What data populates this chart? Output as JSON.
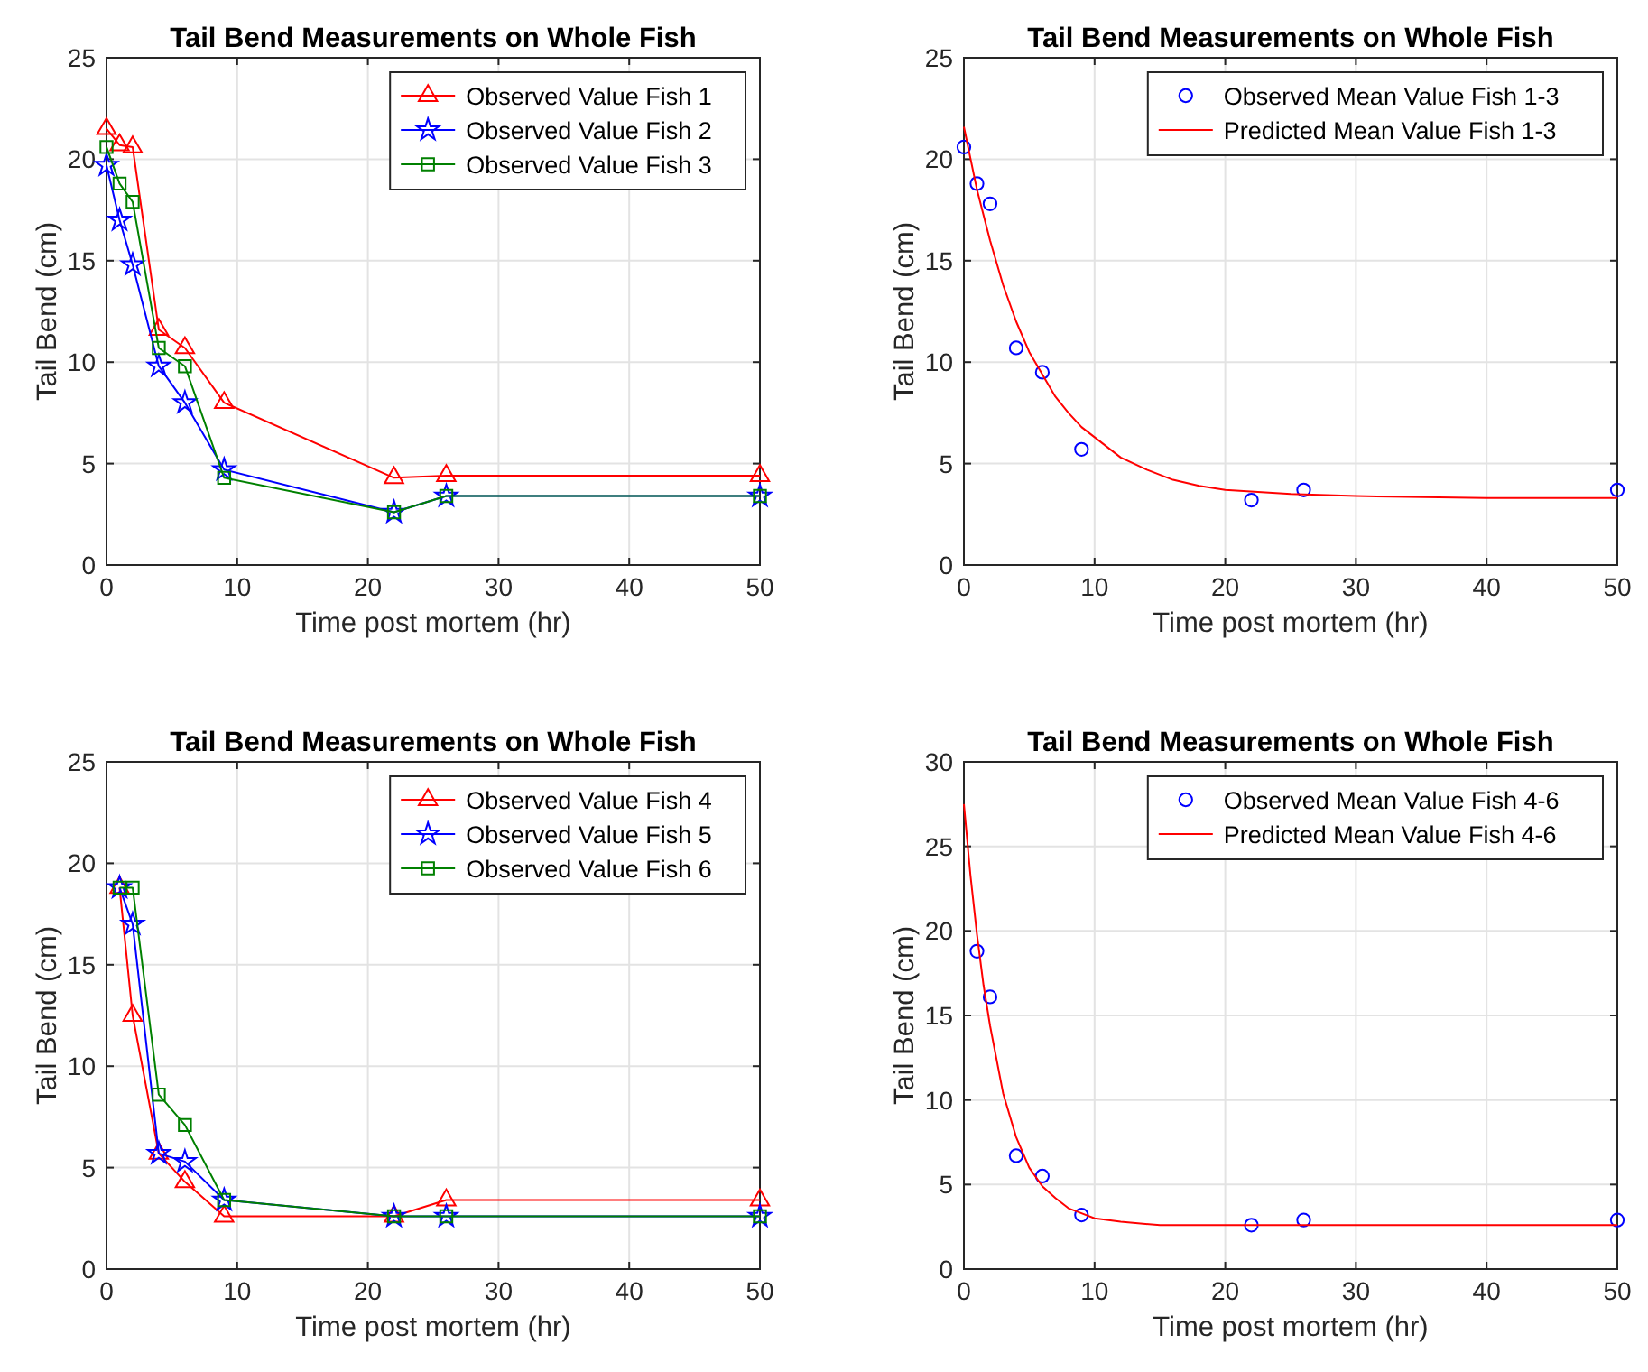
{
  "chart_data": [
    {
      "type": "line",
      "title": "Tail Bend Measurements on Whole Fish",
      "xlabel": "Time post mortem (hr)",
      "ylabel": "Tail Bend (cm)",
      "x": [
        0,
        1,
        2,
        4,
        6,
        9,
        22,
        26,
        50
      ],
      "xlim": [
        0,
        50
      ],
      "xticks": [
        0,
        10,
        20,
        30,
        40,
        50
      ],
      "ylim": [
        0,
        25
      ],
      "yticks": [
        0,
        5,
        10,
        15,
        20,
        25
      ],
      "grid": true,
      "legend": "top right",
      "series": [
        {
          "name": "Observed Value Fish 1",
          "color": "#ff0000",
          "marker": "triangle",
          "values": [
            21.5,
            20.7,
            20.6,
            11.6,
            10.7,
            8.0,
            4.3,
            4.4,
            4.4
          ]
        },
        {
          "name": "Observed Value Fish 2",
          "color": "#0000ff",
          "marker": "star",
          "values": [
            19.7,
            17.0,
            14.8,
            9.8,
            8.0,
            4.7,
            2.6,
            3.4,
            3.4
          ]
        },
        {
          "name": "Observed Value Fish 3",
          "color": "#008000",
          "marker": "square",
          "values": [
            20.6,
            18.8,
            17.9,
            10.7,
            9.8,
            4.3,
            2.6,
            3.4,
            3.4
          ]
        }
      ]
    },
    {
      "type": "scatter",
      "title": "Tail Bend Measurements on Whole Fish",
      "xlabel": "Time post mortem (hr)",
      "ylabel": "Tail Bend (cm)",
      "xlim": [
        0,
        50
      ],
      "xticks": [
        0,
        10,
        20,
        30,
        40,
        50
      ],
      "ylim": [
        0,
        25
      ],
      "yticks": [
        0,
        5,
        10,
        15,
        20,
        25
      ],
      "grid": true,
      "legend": "top right",
      "series": [
        {
          "name": "Observed Mean Value Fish 1-3",
          "color": "#0000ff",
          "marker": "circle",
          "x": [
            0,
            1,
            2,
            4,
            6,
            9,
            22,
            26,
            50
          ],
          "values": [
            20.6,
            18.8,
            17.8,
            10.7,
            9.5,
            5.7,
            3.2,
            3.7,
            3.7
          ]
        },
        {
          "name": "Predicted Mean Value Fish 1-3",
          "type": "line",
          "color": "#ff0000",
          "marker": "none",
          "x": [
            0,
            1,
            2,
            3,
            4,
            5,
            6,
            7,
            8,
            9,
            10,
            12,
            14,
            16,
            18,
            20,
            25,
            30,
            40,
            50
          ],
          "values": [
            21.6,
            18.5,
            16.0,
            13.8,
            12.0,
            10.5,
            9.4,
            8.3,
            7.5,
            6.8,
            6.3,
            5.3,
            4.7,
            4.2,
            3.9,
            3.7,
            3.5,
            3.4,
            3.3,
            3.3
          ]
        }
      ]
    },
    {
      "type": "line",
      "title": "Tail Bend Measurements on Whole Fish",
      "xlabel": "Time post mortem (hr)",
      "ylabel": "Tail Bend (cm)",
      "x": [
        1,
        2,
        4,
        6,
        9,
        22,
        26,
        50
      ],
      "xlim": [
        0,
        50
      ],
      "xticks": [
        0,
        10,
        20,
        30,
        40,
        50
      ],
      "ylim": [
        0,
        25
      ],
      "yticks": [
        0,
        5,
        10,
        15,
        20,
        25
      ],
      "grid": true,
      "legend": "top right",
      "series": [
        {
          "name": "Observed Value Fish 4",
          "color": "#ff0000",
          "marker": "triangle",
          "values": [
            18.8,
            12.5,
            5.7,
            4.3,
            2.6,
            2.6,
            3.4,
            3.4
          ]
        },
        {
          "name": "Observed Value Fish 5",
          "color": "#0000ff",
          "marker": "star",
          "values": [
            18.8,
            17.0,
            5.7,
            5.3,
            3.4,
            2.6,
            2.6,
            2.6
          ]
        },
        {
          "name": "Observed Value Fish 6",
          "color": "#008000",
          "marker": "square",
          "values": [
            18.8,
            18.8,
            8.6,
            7.1,
            3.4,
            2.6,
            2.6,
            2.6
          ]
        }
      ]
    },
    {
      "type": "scatter",
      "title": "Tail Bend Measurements on Whole Fish",
      "xlabel": "Time post mortem (hr)",
      "ylabel": "Tail Bend (cm)",
      "xlim": [
        0,
        50
      ],
      "xticks": [
        0,
        10,
        20,
        30,
        40,
        50
      ],
      "ylim": [
        0,
        30
      ],
      "yticks": [
        0,
        5,
        10,
        15,
        20,
        25,
        30
      ],
      "grid": true,
      "legend": "top right",
      "series": [
        {
          "name": "Observed Mean Value Fish 4-6",
          "color": "#0000ff",
          "marker": "circle",
          "x": [
            1,
            2,
            4,
            6,
            9,
            22,
            26,
            50
          ],
          "values": [
            18.8,
            16.1,
            6.7,
            5.5,
            3.2,
            2.6,
            2.9,
            2.9
          ]
        },
        {
          "name": "Predicted Mean Value Fish 4-6",
          "type": "line",
          "color": "#ff0000",
          "marker": "none",
          "x": [
            0,
            0.5,
            1,
            1.5,
            2,
            3,
            4,
            5,
            6,
            7,
            8,
            9,
            10,
            12,
            15,
            20,
            30,
            50
          ],
          "values": [
            27.5,
            23.3,
            19.8,
            16.8,
            14.4,
            10.4,
            7.8,
            6.0,
            4.9,
            4.2,
            3.6,
            3.3,
            3.0,
            2.8,
            2.6,
            2.6,
            2.6,
            2.6
          ]
        }
      ]
    }
  ]
}
